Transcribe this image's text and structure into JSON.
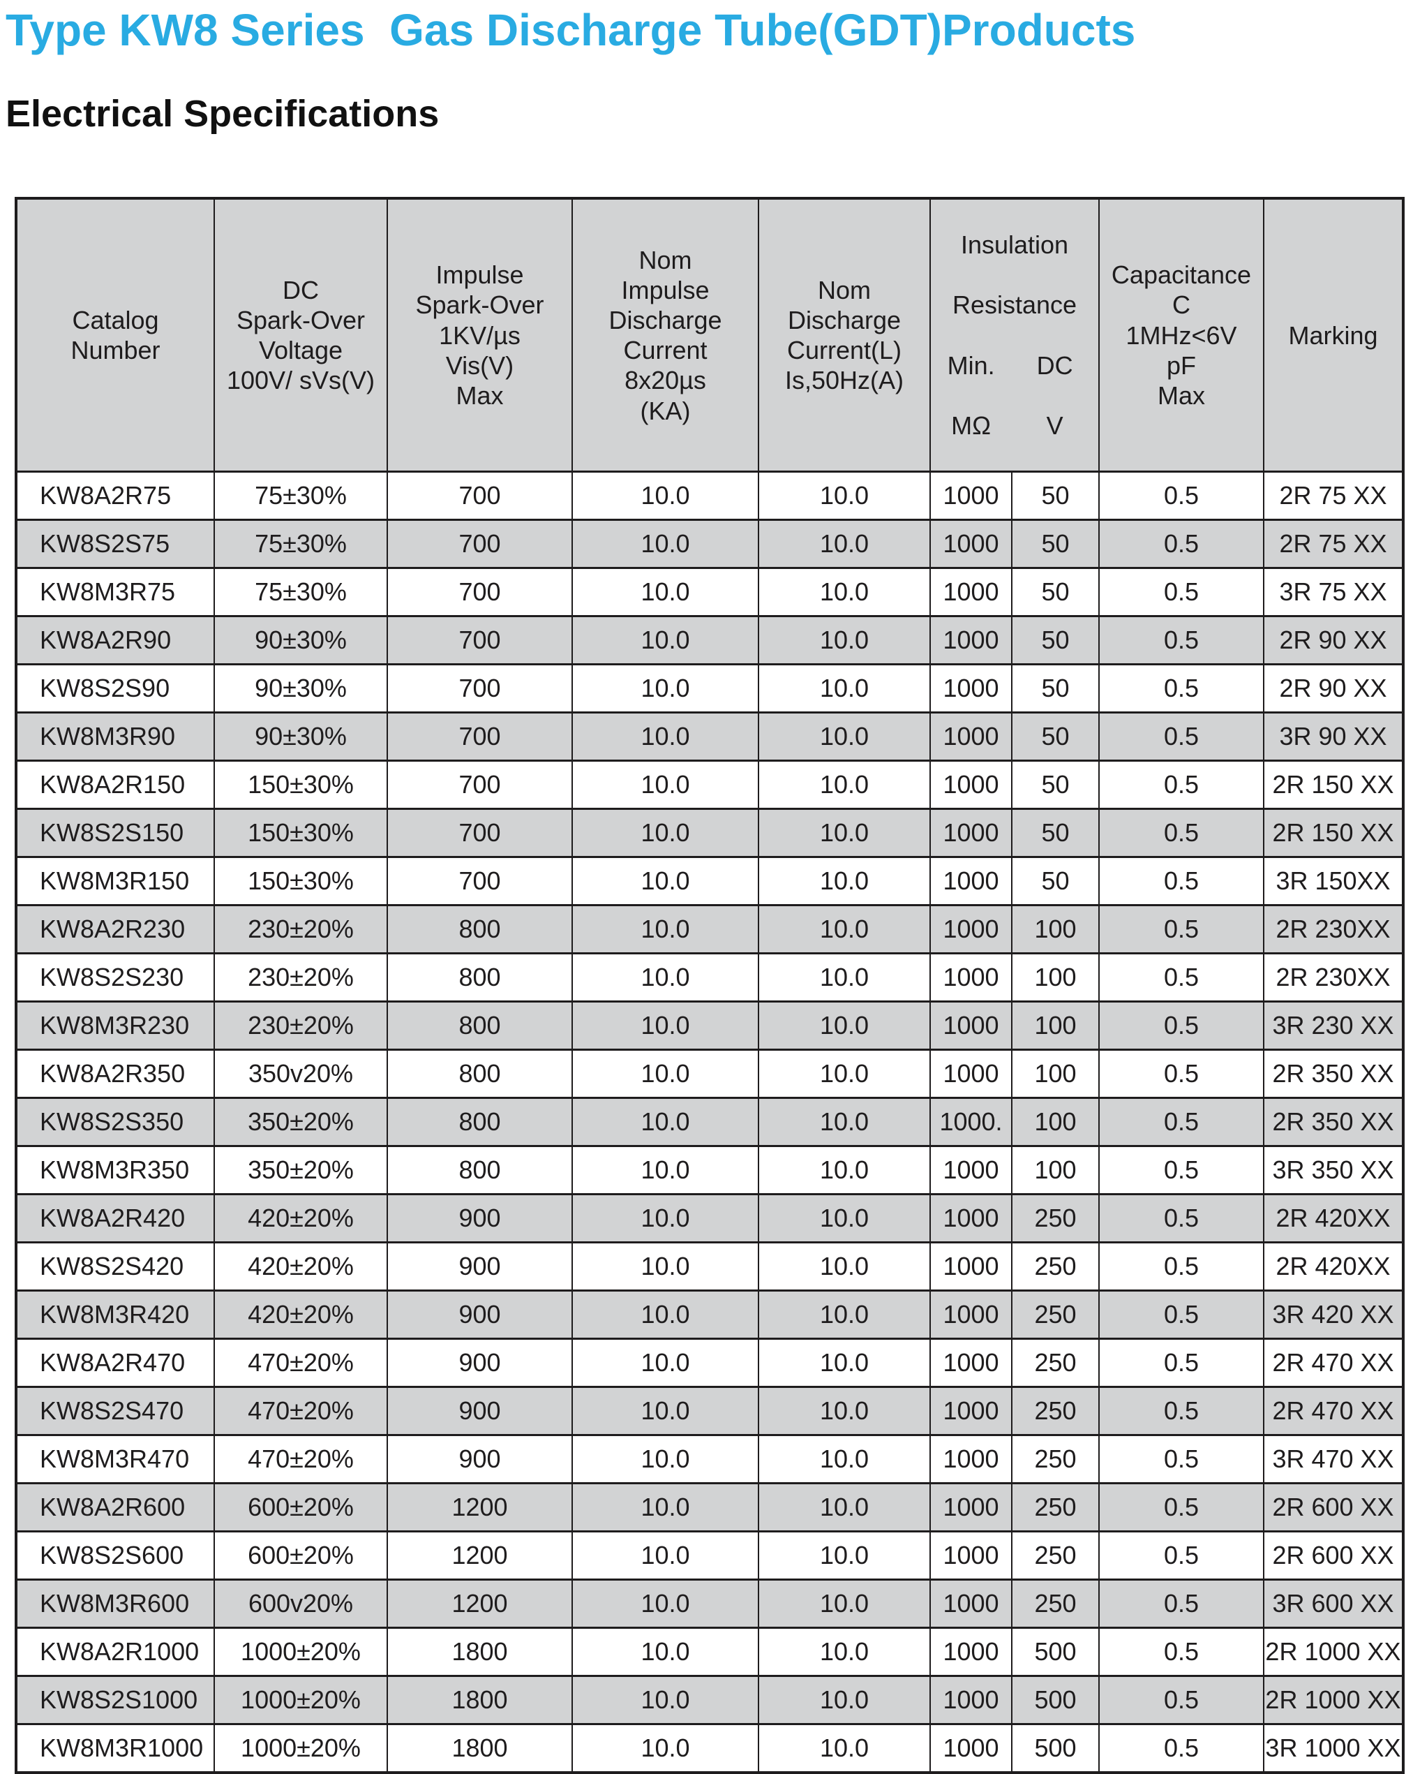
{
  "page": {
    "title": "Type KW8 Series  Gas Discharge Tube(GDT)Products",
    "section_heading": "Electrical Specifications"
  },
  "colors": {
    "title_accent": "#29ABE2",
    "heading_text": "#111111",
    "row_shading": "#D2D3D4",
    "header_background": "#D2D3D4",
    "border": "#1E1C1D",
    "page_background": "#FFFFFF"
  },
  "table": {
    "headers": {
      "catalog": "Catalog\nNumber",
      "dc_spark_over": "DC\nSpark-Over\nVoltage\n100V/ sVs(V)",
      "impulse_spark_over": "Impulse\nSpark-Over\n1KV/µs\nVis(V)\nMax",
      "nom_impulse_discharge": "Nom\nImpulse\nDischarge\nCurrent\n8x20µs\n(KA)",
      "nom_discharge": "Nom\nDischarge\nCurrent(L)\nIs,50Hz(A)",
      "insulation_line1": "Insulation",
      "insulation_line2": "Resistance",
      "insulation_min": "Min.",
      "insulation_dc": "DC",
      "insulation_mohm": "MΩ",
      "insulation_v": "V",
      "capacitance": "Capacitance\nC\n1MHz<6V\npF\nMax",
      "marking": "Marking"
    },
    "rows": [
      [
        "KW8A2R75",
        "75±30%",
        "700",
        "10.0",
        "10.0",
        "1000",
        "50",
        "0.5",
        "2R 75 XX"
      ],
      [
        "KW8S2S75",
        "75±30%",
        "700",
        "10.0",
        "10.0",
        "1000",
        "50",
        "0.5",
        "2R 75 XX"
      ],
      [
        "KW8M3R75",
        "75±30%",
        "700",
        "10.0",
        "10.0",
        "1000",
        "50",
        "0.5",
        "3R 75 XX"
      ],
      [
        "KW8A2R90",
        "90±30%",
        "700",
        "10.0",
        "10.0",
        "1000",
        "50",
        "0.5",
        "2R 90 XX"
      ],
      [
        "KW8S2S90",
        "90±30%",
        "700",
        "10.0",
        "10.0",
        "1000",
        "50",
        "0.5",
        "2R 90 XX"
      ],
      [
        "KW8M3R90",
        "90±30%",
        "700",
        "10.0",
        "10.0",
        "1000",
        "50",
        "0.5",
        "3R 90 XX"
      ],
      [
        "KW8A2R150",
        "150±30%",
        "700",
        "10.0",
        "10.0",
        "1000",
        "50",
        "0.5",
        "2R 150 XX"
      ],
      [
        "KW8S2S150",
        "150±30%",
        "700",
        "10.0",
        "10.0",
        "1000",
        "50",
        "0.5",
        "2R 150 XX"
      ],
      [
        "KW8M3R150",
        "150±30%",
        "700",
        "10.0",
        "10.0",
        "1000",
        "50",
        "0.5",
        "3R 150XX"
      ],
      [
        "KW8A2R230",
        "230±20%",
        "800",
        "10.0",
        "10.0",
        "1000",
        "100",
        "0.5",
        "2R 230XX"
      ],
      [
        "KW8S2S230",
        "230±20%",
        "800",
        "10.0",
        "10.0",
        "1000",
        "100",
        "0.5",
        "2R 230XX"
      ],
      [
        "KW8M3R230",
        "230±20%",
        "800",
        "10.0",
        "10.0",
        "1000",
        "100",
        "0.5",
        "3R 230 XX"
      ],
      [
        "KW8A2R350",
        "350v20%",
        "800",
        "10.0",
        "10.0",
        "1000",
        "100",
        "0.5",
        "2R 350 XX"
      ],
      [
        "KW8S2S350",
        "350±20%",
        "800",
        "10.0",
        "10.0",
        "1000.",
        "100",
        "0.5",
        "2R 350 XX"
      ],
      [
        "KW8M3R350",
        "350±20%",
        "800",
        "10.0",
        "10.0",
        "1000",
        "100",
        "0.5",
        "3R 350 XX"
      ],
      [
        "KW8A2R420",
        "420±20%",
        "900",
        "10.0",
        "10.0",
        "1000",
        "250",
        "0.5",
        "2R 420XX"
      ],
      [
        "KW8S2S420",
        "420±20%",
        "900",
        "10.0",
        "10.0",
        "1000",
        "250",
        "0.5",
        "2R 420XX"
      ],
      [
        "KW8M3R420",
        "420±20%",
        "900",
        "10.0",
        "10.0",
        "1000",
        "250",
        "0.5",
        "3R 420 XX"
      ],
      [
        "KW8A2R470",
        "470±20%",
        "900",
        "10.0",
        "10.0",
        "1000",
        "250",
        "0.5",
        "2R 470 XX"
      ],
      [
        "KW8S2S470",
        "470±20%",
        "900",
        "10.0",
        "10.0",
        "1000",
        "250",
        "0.5",
        "2R 470 XX"
      ],
      [
        "KW8M3R470",
        "470±20%",
        "900",
        "10.0",
        "10.0",
        "1000",
        "250",
        "0.5",
        "3R 470 XX"
      ],
      [
        "KW8A2R600",
        "600±20%",
        "1200",
        "10.0",
        "10.0",
        "1000",
        "250",
        "0.5",
        "2R 600 XX"
      ],
      [
        "KW8S2S600",
        "600±20%",
        "1200",
        "10.0",
        "10.0",
        "1000",
        "250",
        "0.5",
        "2R 600 XX"
      ],
      [
        "KW8M3R600",
        "600v20%",
        "1200",
        "10.0",
        "10.0",
        "1000",
        "250",
        "0.5",
        "3R 600 XX"
      ],
      [
        "KW8A2R1000",
        "1000±20%",
        "1800",
        "10.0",
        "10.0",
        "1000",
        "500",
        "0.5",
        "2R 1000 XX"
      ],
      [
        "KW8S2S1000",
        "1000±20%",
        "1800",
        "10.0",
        "10.0",
        "1000",
        "500",
        "0.5",
        "2R 1000 XX"
      ],
      [
        "KW8M3R1000",
        "1000±20%",
        "1800",
        "10.0",
        "10.0",
        "1000",
        "500",
        "0.5",
        "3R 1000 XX"
      ]
    ]
  }
}
